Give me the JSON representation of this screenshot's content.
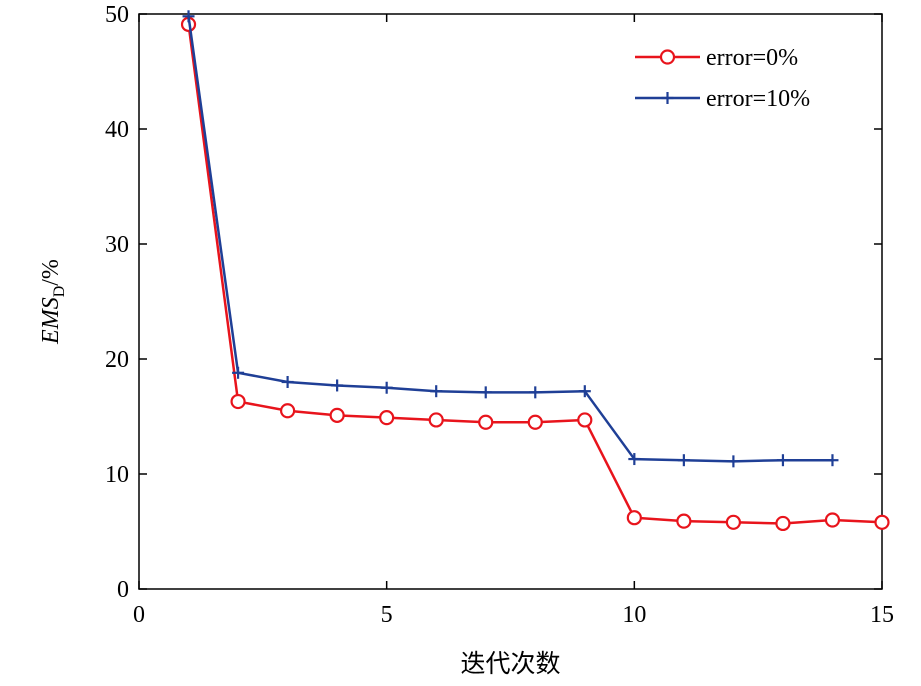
{
  "chart_data": {
    "type": "line",
    "xlabel": "迭代次数",
    "ylabel": {
      "main": "EMS",
      "sub": "D",
      "suffix": "/%"
    },
    "xlim": [
      0,
      15
    ],
    "ylim": [
      0,
      50
    ],
    "xticks": [
      0,
      5,
      10,
      15
    ],
    "yticks": [
      0,
      10,
      20,
      30,
      40,
      50
    ],
    "grid": false,
    "legend_position": "top-right",
    "series": [
      {
        "name": "error=0%",
        "color": "#e8141c",
        "marker": "circle",
        "x": [
          1,
          2,
          3,
          4,
          5,
          6,
          7,
          8,
          9,
          10,
          11,
          12,
          13,
          14,
          15
        ],
        "y": [
          49.1,
          16.3,
          15.5,
          15.1,
          14.9,
          14.7,
          14.5,
          14.5,
          14.7,
          6.2,
          5.9,
          5.8,
          5.7,
          6.0,
          5.8
        ]
      },
      {
        "name": "error=10%",
        "color": "#1f3f96",
        "marker": "plus",
        "x": [
          1,
          2,
          3,
          4,
          5,
          6,
          7,
          8,
          9,
          10,
          11,
          12,
          13,
          14
        ],
        "y": [
          49.8,
          18.8,
          18.0,
          17.7,
          17.5,
          17.2,
          17.1,
          17.1,
          17.2,
          11.3,
          11.2,
          11.1,
          11.2,
          11.2
        ]
      }
    ]
  }
}
